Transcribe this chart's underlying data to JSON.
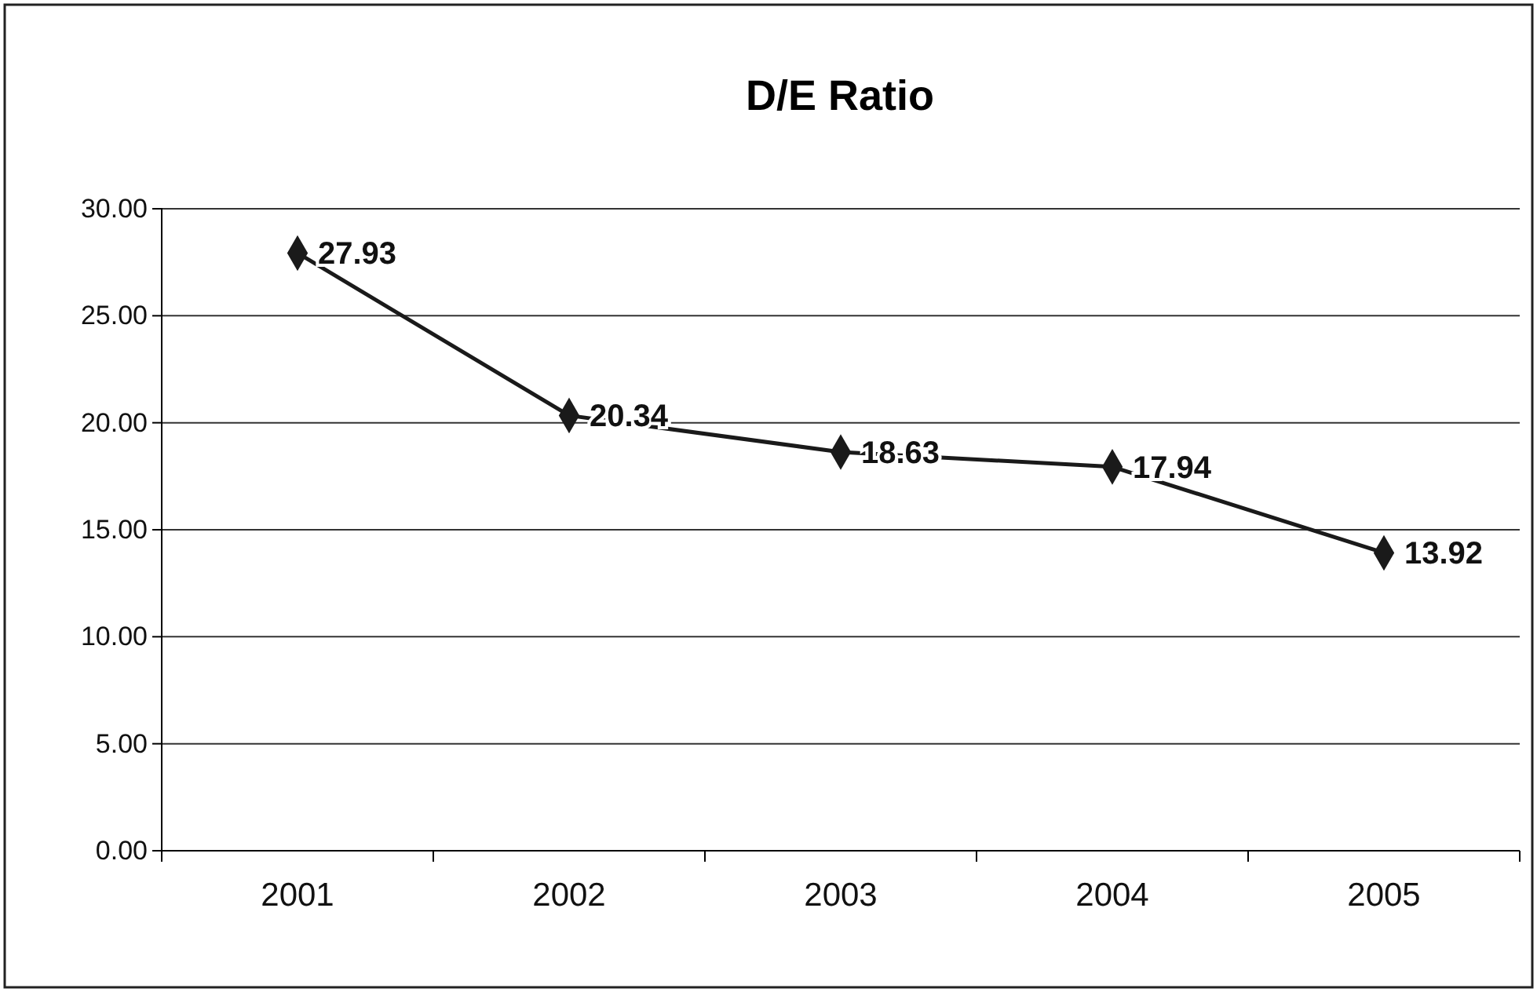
{
  "chart_data": {
    "type": "line",
    "title": "D/E Ratio",
    "categories": [
      "2001",
      "2002",
      "2003",
      "2004",
      "2005"
    ],
    "values": [
      27.93,
      20.34,
      18.63,
      17.94,
      13.92
    ],
    "color": "#1a1a1a",
    "ylim": [
      0,
      30
    ],
    "yticks": [
      {
        "value": 0,
        "label": "0.00"
      },
      {
        "value": 5,
        "label": "5.00"
      },
      {
        "value": 10,
        "label": "10.00"
      },
      {
        "value": 15,
        "label": "15.00"
      },
      {
        "value": 20,
        "label": "20.00"
      },
      {
        "value": 25,
        "label": "25.00"
      },
      {
        "value": 30,
        "label": "30.00"
      }
    ],
    "grid": "y",
    "marker": "diamond",
    "data_labels": true
  }
}
